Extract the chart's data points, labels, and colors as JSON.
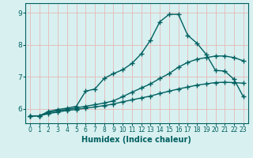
{
  "xlabel": "Humidex (Indice chaleur)",
  "background_color": "#d8f0f0",
  "grid_color": "#e8b8b8",
  "line_color": "#006060",
  "xlim": [
    -0.5,
    23.5
  ],
  "ylim": [
    5.55,
    9.3
  ],
  "yticks": [
    6,
    7,
    8,
    9
  ],
  "xticks": [
    0,
    1,
    2,
    3,
    4,
    5,
    6,
    7,
    8,
    9,
    10,
    11,
    12,
    13,
    14,
    15,
    16,
    17,
    18,
    19,
    20,
    21,
    22,
    23
  ],
  "curve1_x": [
    0,
    1,
    2,
    3,
    4,
    5,
    6,
    7,
    8,
    9,
    10,
    11,
    12,
    13,
    14,
    15,
    16,
    17,
    18,
    19,
    20,
    21,
    22,
    23
  ],
  "curve1_y": [
    5.78,
    5.78,
    5.85,
    5.9,
    5.95,
    5.98,
    6.02,
    6.06,
    6.1,
    6.15,
    6.22,
    6.28,
    6.34,
    6.4,
    6.48,
    6.55,
    6.62,
    6.68,
    6.74,
    6.78,
    6.82,
    6.83,
    6.82,
    6.8
  ],
  "curve2_x": [
    0,
    1,
    2,
    3,
    4,
    5,
    6,
    7,
    8,
    9,
    10,
    11,
    12,
    13,
    14,
    15,
    16,
    17,
    18,
    19,
    20,
    21,
    22,
    23
  ],
  "curve2_y": [
    5.78,
    5.78,
    5.88,
    5.94,
    5.98,
    6.03,
    6.08,
    6.13,
    6.18,
    6.25,
    6.38,
    6.52,
    6.65,
    6.78,
    6.95,
    7.1,
    7.3,
    7.45,
    7.55,
    7.6,
    7.65,
    7.65,
    7.6,
    7.5
  ],
  "curve3_x": [
    0,
    1,
    2,
    3,
    4,
    5,
    6,
    7,
    8,
    9,
    10,
    11,
    12,
    13,
    14,
    15,
    16,
    17,
    18,
    19,
    20,
    21,
    22,
    23
  ],
  "curve3_y": [
    5.78,
    5.78,
    5.92,
    5.98,
    6.02,
    6.08,
    6.55,
    6.62,
    6.95,
    7.1,
    7.22,
    7.42,
    7.72,
    8.15,
    8.72,
    8.95,
    8.95,
    8.3,
    8.05,
    7.7,
    7.2,
    7.18,
    6.92,
    6.38
  ],
  "marker": "+",
  "marker_size": 4,
  "line_width": 1.0
}
